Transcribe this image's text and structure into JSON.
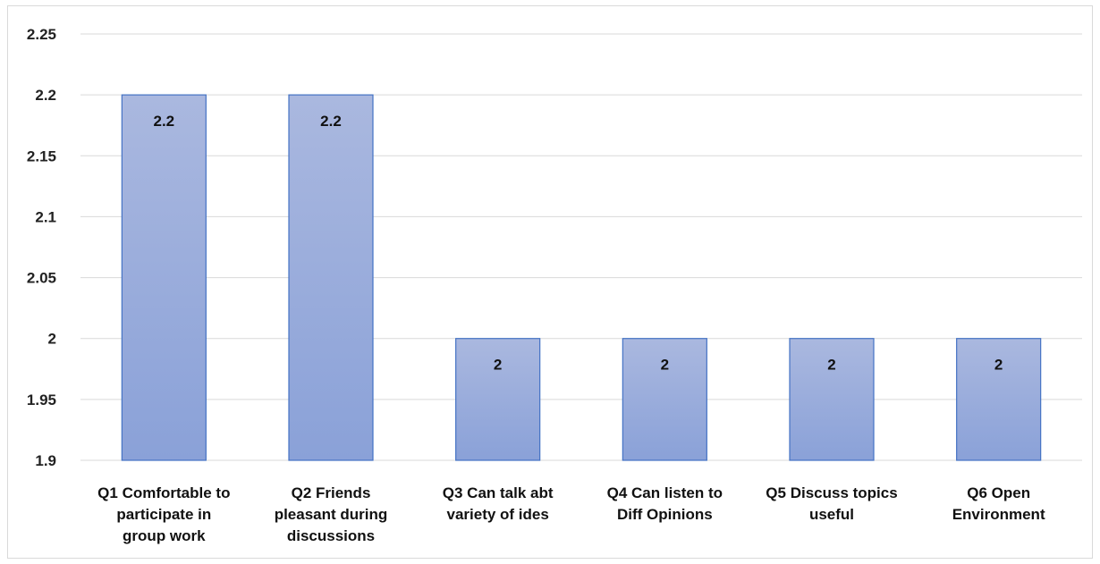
{
  "chart_data": {
    "type": "bar",
    "categories": [
      [
        "Q1 Comfortable to",
        "participate in",
        "group work"
      ],
      [
        "Q2 Friends",
        "pleasant during",
        "discussions"
      ],
      [
        "Q3 Can talk abt",
        "variety of ides"
      ],
      [
        "Q4 Can listen to",
        "Diff Opinions"
      ],
      [
        "Q5 Discuss topics",
        "useful"
      ],
      [
        "Q6 Open",
        "Environment"
      ]
    ],
    "values": [
      2.2,
      2.2,
      2,
      2,
      2,
      2
    ],
    "data_labels": [
      "2.2",
      "2.2",
      "2",
      "2",
      "2",
      "2"
    ],
    "ylim": [
      1.9,
      2.25
    ],
    "yticks": [
      1.9,
      1.95,
      2,
      2.05,
      2.1,
      2.15,
      2.2,
      2.25
    ],
    "ytick_labels": [
      "1.9",
      "1.95",
      "2",
      "2.05",
      "2.1",
      "2.15",
      "2.2",
      "2.25"
    ],
    "grid": true,
    "legend": "none",
    "colors": {
      "bar_top": "#aab8df",
      "bar_bottom": "#8aa1d8",
      "bar_border": "#4472c4",
      "grid": "#d9d9d9"
    }
  }
}
